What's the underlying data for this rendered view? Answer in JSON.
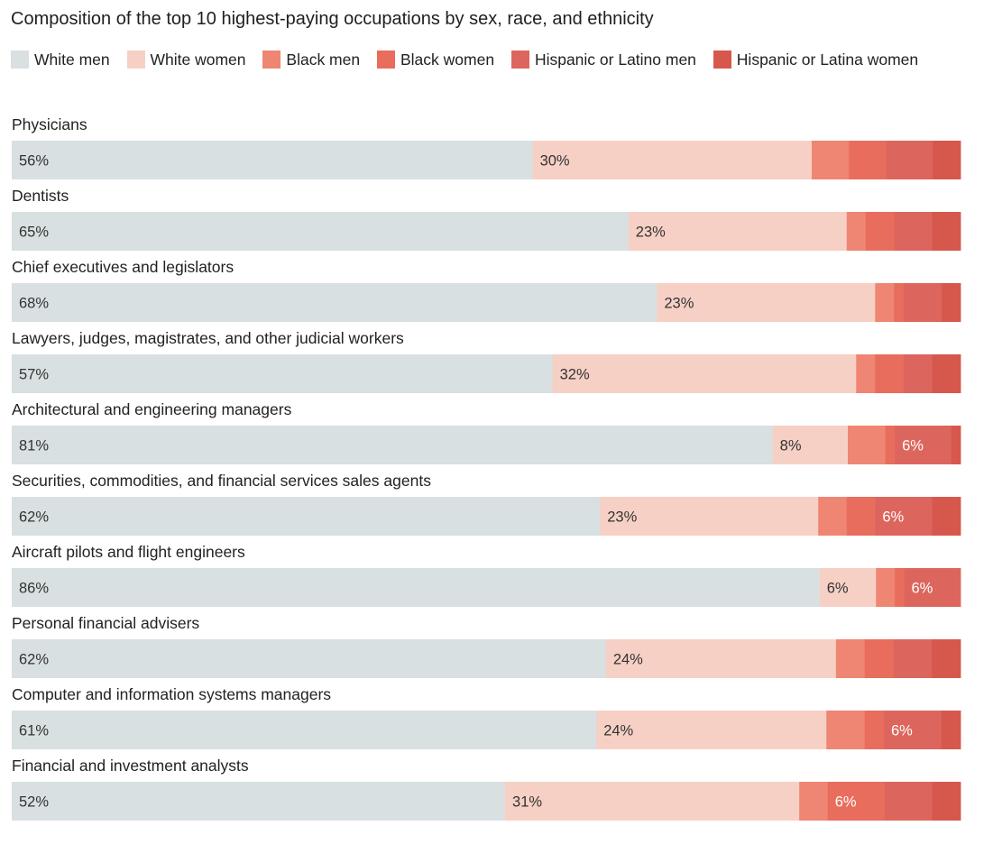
{
  "chart_data": {
    "type": "bar",
    "orientation": "horizontal",
    "stacked": true,
    "title": "Composition of the top 10 highest-paying occupations by sex, race, and ethnicity",
    "xlim": [
      0,
      100
    ],
    "unit": "%",
    "legend_position": "top",
    "categories": [
      "Physicians",
      "Dentists",
      "Chief executives and legislators",
      "Lawyers, judges, magistrates, and other judicial workers",
      "Architectural and engineering managers",
      "Securities, commodities, and financial services sales agents",
      "Aircraft pilots and flight engineers",
      "Personal financial advisers",
      "Computer and information systems managers",
      "Financial and investment analysts"
    ],
    "series": [
      {
        "name": "White men",
        "color": "#d8e0e1",
        "label_color": "#333333",
        "values": [
          56,
          65,
          68,
          57,
          81,
          62,
          86,
          62,
          61,
          52
        ],
        "labels": [
          "56%",
          "65%",
          "68%",
          "57%",
          "81%",
          "62%",
          "86%",
          "62%",
          "61%",
          "52%"
        ]
      },
      {
        "name": "White women",
        "color": "#f6d0c5",
        "label_color": "#333333",
        "values": [
          30,
          23,
          23,
          32,
          8,
          23,
          6,
          24,
          24,
          31
        ],
        "labels": [
          "30%",
          "23%",
          "23%",
          "32%",
          "8%",
          "23%",
          "6%",
          "24%",
          "24%",
          "31%"
        ]
      },
      {
        "name": "Black men",
        "color": "#ef8573",
        "label_color": "#ffffff",
        "values": [
          4,
          2,
          2,
          2,
          4,
          3,
          2,
          3,
          4,
          3
        ],
        "labels": [
          "",
          "",
          "",
          "",
          "",
          "",
          "",
          "",
          "",
          ""
        ]
      },
      {
        "name": "Black women",
        "color": "#e86d5d",
        "label_color": "#ffffff",
        "values": [
          4,
          3,
          1,
          3,
          1,
          3,
          1,
          3,
          2,
          6
        ],
        "labels": [
          "",
          "",
          "",
          "",
          "",
          "",
          "",
          "",
          "",
          "6%"
        ]
      },
      {
        "name": "Hispanic or Latino men",
        "color": "#dc665d",
        "label_color": "#ffffff",
        "values": [
          5,
          4,
          4,
          3,
          6,
          6,
          6,
          4,
          6,
          5
        ],
        "labels": [
          "",
          "",
          "",
          "",
          "6%",
          "6%",
          "6%",
          "",
          "6%",
          ""
        ]
      },
      {
        "name": "Hispanic or Latina women",
        "color": "#d6584d",
        "label_color": "#ffffff",
        "values": [
          3,
          3,
          2,
          3,
          1,
          3,
          0,
          3,
          2,
          3
        ],
        "labels": [
          "",
          "",
          "",
          "",
          "",
          "",
          "",
          "",
          "",
          ""
        ]
      }
    ]
  }
}
